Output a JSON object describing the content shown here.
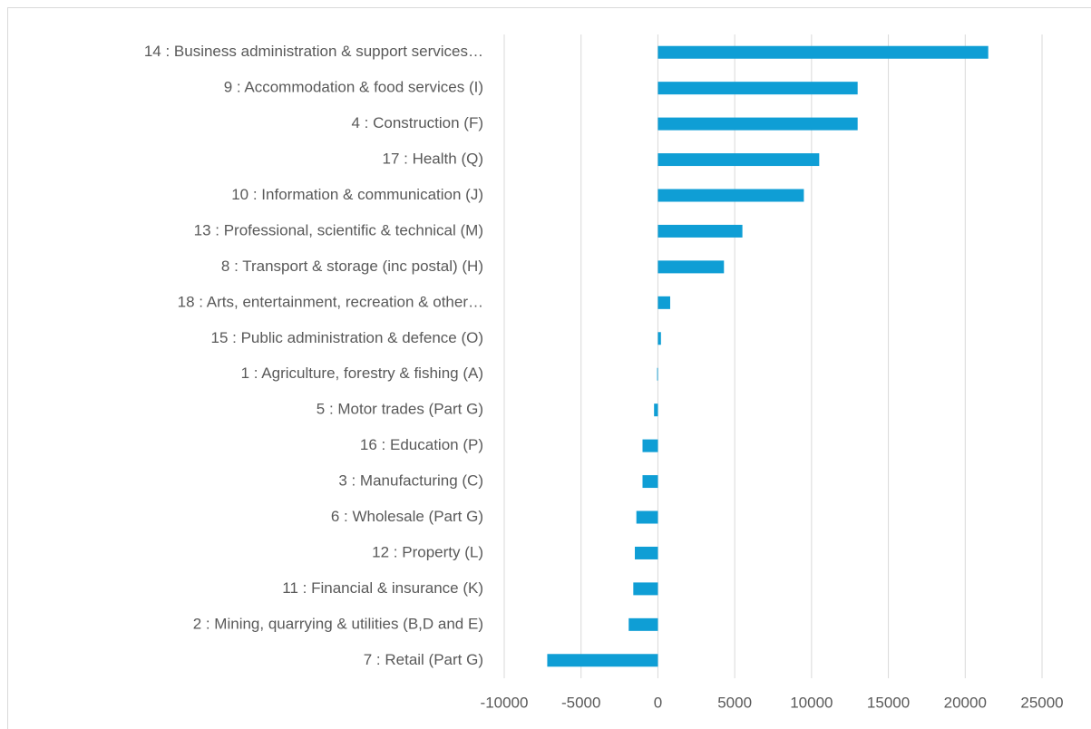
{
  "chart_data": {
    "type": "bar",
    "orientation": "horizontal",
    "categories": [
      "14 : Business administration & support services…",
      "9 : Accommodation & food services (I)",
      "4 : Construction (F)",
      "17 : Health (Q)",
      "10 : Information & communication (J)",
      "13 : Professional, scientific & technical (M)",
      "8 : Transport & storage (inc postal) (H)",
      "18 : Arts, entertainment, recreation & other…",
      "15 : Public administration & defence (O)",
      "1 : Agriculture, forestry & fishing (A)",
      "5 : Motor trades (Part G)",
      "16 : Education (P)",
      "3 : Manufacturing (C)",
      "6 : Wholesale (Part G)",
      "12 : Property (L)",
      "11 : Financial & insurance (K)",
      "2 : Mining, quarrying & utilities (B,D and E)",
      "7 : Retail (Part G)"
    ],
    "values": [
      21500,
      13000,
      13000,
      10500,
      9500,
      5500,
      4300,
      800,
      200,
      -50,
      -250,
      -1000,
      -1000,
      -1400,
      -1500,
      -1600,
      -1900,
      -7200
    ],
    "color": "#0f9ed5",
    "xlim": [
      -10000,
      25000
    ],
    "xticks": [
      -10000,
      -5000,
      0,
      5000,
      10000,
      15000,
      20000,
      25000
    ],
    "grid": true
  }
}
